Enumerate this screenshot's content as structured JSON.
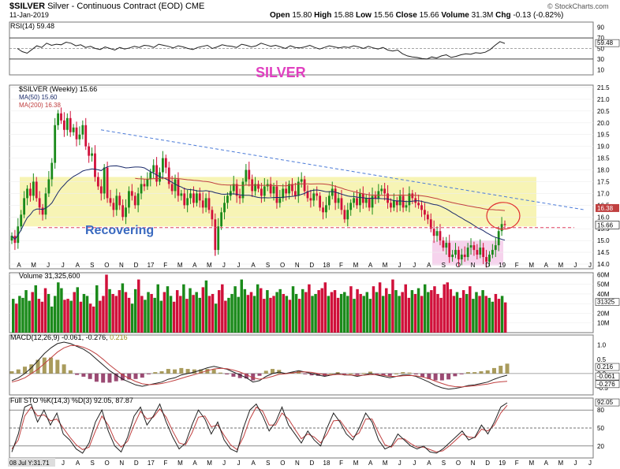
{
  "header": {
    "symbol": "$SILVER",
    "description": "Silver - Continuous Contract (EOD)",
    "exchange": "CME",
    "date": "11-Jan-2019",
    "open_label": "Open",
    "open": "15.80",
    "high_label": "High",
    "high": "15.88",
    "low_label": "Low",
    "low": "15.56",
    "close_label": "Close",
    "close": "15.66",
    "volume_label": "Volume",
    "volume": "31.3M",
    "chg_label": "Chg",
    "chg": "-0.13 (-0.82%)",
    "credit": "© StockCharts.com"
  },
  "colors": {
    "up": "#1a8a1a",
    "down": "#d0103a",
    "ma50": "#1a2a6a",
    "ma200": "#c04040",
    "trend": "#4a7ad8",
    "zone": "#f6f2a8",
    "pink_box": "#f4c8e8",
    "silver_text": "#e040c0",
    "recovering_text": "#3a6ac0"
  },
  "annotations": {
    "title": "SILVER",
    "recovering": "Recovering"
  },
  "chart_data": [
    {
      "type": "line",
      "name": "rsi_panel",
      "legend": "RSI(14) 59.48",
      "value_label": "59.48",
      "ylim": [
        0,
        100
      ],
      "yticks": [
        "90",
        "70",
        "50",
        "30",
        "10"
      ],
      "reference_lines": [
        70,
        30
      ],
      "values": [
        50,
        44,
        41,
        48,
        55,
        52,
        60,
        56,
        58,
        57,
        62,
        60,
        55,
        57,
        52,
        54,
        50,
        48,
        53,
        50,
        47,
        52,
        49,
        51,
        54,
        52,
        56,
        55,
        52,
        58,
        56,
        54,
        51,
        55,
        53,
        50,
        48,
        52,
        54,
        56,
        50,
        53,
        57,
        55,
        54,
        52,
        58,
        56,
        53,
        55,
        60,
        57,
        54,
        56,
        53,
        50,
        55,
        52,
        51,
        53,
        56,
        52,
        49,
        52,
        55,
        53,
        51,
        53,
        52,
        55,
        53,
        50,
        54,
        51,
        49,
        52,
        47,
        45,
        47,
        40,
        36,
        34,
        33,
        31,
        30,
        34,
        32,
        36,
        38,
        33,
        35,
        38,
        40,
        39,
        42,
        41,
        43,
        48,
        56,
        63,
        59.48
      ]
    },
    {
      "type": "candlestick",
      "name": "price_panel",
      "legend": "$SILVER (Weekly) 15.66",
      "series_labels": [
        "MA(50) 15.60",
        "MA(200) 16.38"
      ],
      "ylim": [
        13.8,
        21.6
      ],
      "yticks": [
        "21.5",
        "21.0",
        "20.5",
        "20.0",
        "19.5",
        "19.0",
        "18.5",
        "18.0",
        "17.5",
        "17.0",
        "16.5",
        "16.0",
        "15.5",
        "15.0",
        "14.5",
        "14.0"
      ],
      "price_tags": [
        "16.38",
        "15.66"
      ],
      "x_labels": [
        "A",
        "M",
        "J",
        "J",
        "A",
        "S",
        "O",
        "N",
        "D",
        "17",
        "F",
        "M",
        "A",
        "M",
        "J",
        "J",
        "A",
        "S",
        "O",
        "N",
        "D",
        "18",
        "F",
        "M",
        "A",
        "M",
        "J",
        "J",
        "A",
        "S",
        "O",
        "N",
        "D",
        "19",
        "F",
        "M",
        "A",
        "M",
        "J",
        "J"
      ],
      "closes": [
        15.2,
        14.9,
        15.6,
        16.1,
        16.8,
        17.2,
        16.9,
        17.5,
        16.8,
        16.4,
        16.1,
        17.0,
        17.6,
        18.3,
        19.9,
        20.4,
        20.1,
        19.7,
        20.2,
        19.6,
        19.8,
        19.3,
        19.5,
        19.9,
        19.0,
        18.6,
        18.7,
        17.7,
        17.3,
        17.0,
        18.1,
        16.8,
        16.6,
        16.3,
        16.9,
        16.5,
        16.0,
        16.4,
        17.1,
        16.9,
        16.5,
        17.0,
        17.4,
        17.3,
        17.6,
        17.9,
        18.2,
        17.5,
        17.9,
        18.5,
        18.1,
        17.4,
        17.1,
        17.6,
        16.9,
        17.0,
        16.5,
        16.8,
        17.0,
        16.6,
        17.0,
        16.7,
        16.4,
        16.8,
        16.3,
        15.9,
        14.6,
        15.6,
        16.2,
        16.6,
        16.9,
        17.1,
        17.4,
        16.9,
        16.8,
        17.5,
        18.0,
        17.6,
        17.1,
        17.4,
        17.2,
        16.9,
        17.3,
        17.4,
        17.0,
        17.3,
        16.6,
        16.8,
        17.2,
        17.0,
        17.4,
        17.1,
        16.9,
        17.5,
        17.6,
        17.1,
        16.8,
        16.7,
        17.0,
        16.9,
        16.4,
        16.2,
        16.5,
        16.9,
        17.2,
        16.6,
        16.8,
        16.3,
        15.9,
        16.3,
        16.6,
        16.8,
        16.5,
        17.0,
        16.6,
        16.8,
        16.4,
        16.9,
        16.8,
        17.1,
        17.2,
        17.0,
        16.6,
        16.4,
        16.7,
        16.5,
        16.9,
        16.4,
        16.5,
        17.0,
        16.8,
        16.6,
        16.5,
        16.3,
        16.1,
        15.9,
        15.5,
        15.2,
        15.4,
        15.0,
        14.7,
        14.9,
        14.3,
        14.4,
        14.6,
        14.2,
        14.4,
        14.3,
        14.7,
        14.8,
        14.6,
        14.4,
        14.7,
        14.3,
        14.1,
        14.4,
        14.6,
        14.8,
        15.4,
        15.7,
        15.66
      ],
      "trendline": {
        "start_date": "Jul 2016",
        "start_value": 19.7,
        "end_date": "Jul 2019",
        "end_value": 16.3
      },
      "support_line": 15.55,
      "zone": [
        15.6,
        17.7
      ]
    },
    {
      "type": "bar",
      "name": "volume_panel",
      "legend": "Volume 31,325,600",
      "value_label": "31325",
      "yticks": [
        "60M",
        "50M",
        "40M",
        "30M",
        "20M",
        "10M"
      ],
      "ylim": [
        0,
        62
      ],
      "values": [
        35,
        30,
        38,
        36,
        44,
        33,
        42,
        49,
        35,
        32,
        46,
        40,
        27,
        38,
        52,
        46,
        34,
        35,
        33,
        42,
        47,
        32,
        40,
        38,
        30,
        27,
        49,
        33,
        38,
        60,
        45,
        40,
        38,
        44,
        51,
        42,
        36,
        30,
        45,
        55,
        38,
        34,
        42,
        40,
        36,
        50,
        33,
        42,
        48,
        38,
        32,
        44,
        38,
        50,
        35,
        46,
        39,
        42,
        36,
        47,
        54,
        38,
        40,
        30,
        44,
        50,
        33,
        36,
        40,
        48,
        37,
        55,
        45,
        39,
        42,
        38,
        50,
        46,
        35,
        44,
        36,
        38,
        42,
        45,
        40,
        38,
        34,
        48,
        40,
        35,
        45,
        42,
        50,
        38,
        40,
        44,
        46,
        52,
        38,
        42,
        44,
        36,
        40,
        42,
        38,
        48,
        35,
        45,
        40,
        38,
        42,
        35,
        48,
        42,
        52,
        38,
        46,
        40,
        55,
        44,
        38,
        42,
        50,
        36,
        44,
        40,
        46,
        38,
        50,
        42,
        44,
        48,
        40,
        36,
        50,
        52,
        45,
        38,
        42,
        36,
        44,
        40,
        48,
        35,
        42,
        38,
        44,
        38,
        36,
        32,
        40,
        35,
        38,
        31.3
      ]
    },
    {
      "type": "line",
      "name": "macd_panel",
      "legend_prefix": "MACD(12,26,9)",
      "legend_values": "-0.061, -0.276,",
      "legend_hist": "0.216",
      "yticks": [
        "1.0",
        "0.5",
        "0.0",
        "-0.5"
      ],
      "value_labels": [
        "0.216",
        "-0.061",
        "-0.276"
      ],
      "ylim": [
        -0.75,
        1.35
      ],
      "macd": [
        -0.25,
        -0.15,
        0.0,
        0.2,
        0.45,
        0.7,
        0.9,
        1.05,
        1.1,
        1.05,
        0.95,
        0.85,
        0.7,
        0.5,
        0.3,
        0.1,
        -0.05,
        -0.2,
        -0.3,
        -0.4,
        -0.45,
        -0.4,
        -0.35,
        -0.3,
        -0.2,
        -0.15,
        -0.05,
        0.0,
        0.05,
        0.12,
        0.2,
        0.25,
        0.2,
        0.15,
        0.05,
        -0.05,
        -0.15,
        -0.3,
        -0.25,
        -0.1,
        0.0,
        0.05,
        0.0,
        0.05,
        0.1,
        0.05,
        0.0,
        -0.05,
        -0.1,
        -0.05,
        0.0,
        -0.05,
        -0.05,
        -0.1,
        -0.05,
        0.0,
        -0.05,
        -0.1,
        -0.15,
        -0.1,
        -0.05,
        -0.05,
        -0.1,
        -0.2,
        -0.3,
        -0.42,
        -0.5,
        -0.55,
        -0.52,
        -0.48,
        -0.42,
        -0.4,
        -0.35,
        -0.3,
        -0.2,
        -0.12,
        -0.06
      ],
      "signal": [
        -0.3,
        -0.24,
        -0.15,
        0.0,
        0.15,
        0.35,
        0.55,
        0.75,
        0.9,
        0.98,
        0.98,
        0.92,
        0.82,
        0.68,
        0.5,
        0.3,
        0.12,
        -0.05,
        -0.17,
        -0.28,
        -0.36,
        -0.39,
        -0.38,
        -0.35,
        -0.3,
        -0.24,
        -0.17,
        -0.1,
        -0.04,
        0.03,
        0.1,
        0.16,
        0.18,
        0.17,
        0.12,
        0.05,
        -0.04,
        -0.15,
        -0.2,
        -0.16,
        -0.1,
        -0.03,
        -0.01,
        0.02,
        0.05,
        0.06,
        0.04,
        0.0,
        -0.04,
        -0.05,
        -0.03,
        -0.04,
        -0.05,
        -0.07,
        -0.06,
        -0.04,
        -0.04,
        -0.06,
        -0.1,
        -0.1,
        -0.08,
        -0.07,
        -0.08,
        -0.12,
        -0.18,
        -0.27,
        -0.35,
        -0.42,
        -0.46,
        -0.47,
        -0.45,
        -0.43,
        -0.4,
        -0.37,
        -0.32,
        -0.29,
        -0.276
      ]
    },
    {
      "type": "line",
      "name": "sto_panel",
      "legend": "Full STO %K(14,3) %D(3) 92.05, 87.87",
      "value_label": "92.05",
      "yticks": [
        "80",
        "50",
        "20"
      ],
      "ylim": [
        0,
        100
      ],
      "k": [
        10,
        40,
        85,
        90,
        60,
        80,
        55,
        75,
        40,
        30,
        15,
        8,
        25,
        60,
        80,
        45,
        20,
        10,
        35,
        70,
        85,
        55,
        70,
        90,
        60,
        35,
        15,
        25,
        55,
        80,
        65,
        40,
        60,
        30,
        15,
        10,
        50,
        80,
        90,
        70,
        45,
        60,
        85,
        55,
        40,
        25,
        45,
        30,
        20,
        50,
        75,
        60,
        40,
        30,
        50,
        75,
        60,
        30,
        15,
        20,
        40,
        30,
        20,
        15,
        20,
        10,
        8,
        15,
        25,
        35,
        45,
        30,
        35,
        55,
        40,
        60,
        85,
        92.05
      ],
      "d": [
        15,
        30,
        70,
        85,
        70,
        72,
        62,
        65,
        50,
        35,
        22,
        14,
        18,
        45,
        70,
        55,
        30,
        18,
        28,
        55,
        78,
        65,
        68,
        82,
        68,
        45,
        25,
        22,
        42,
        68,
        70,
        52,
        55,
        38,
        22,
        14,
        35,
        65,
        85,
        78,
        55,
        55,
        75,
        65,
        48,
        32,
        40,
        35,
        25,
        40,
        62,
        63,
        48,
        35,
        42,
        65,
        65,
        42,
        22,
        18,
        32,
        32,
        24,
        18,
        18,
        14,
        10,
        12,
        20,
        30,
        40,
        35,
        34,
        48,
        45,
        55,
        75,
        87.87
      ],
      "x_labels": [
        "J",
        "A",
        "S",
        "O",
        "N",
        "D",
        "17",
        "F",
        "M",
        "A",
        "M",
        "J",
        "J",
        "A",
        "S",
        "O",
        "N",
        "D",
        "18",
        "F",
        "M",
        "A",
        "M",
        "J",
        "J",
        "A",
        "S",
        "O",
        "N",
        "D",
        "19",
        "F",
        "M",
        "A",
        "M",
        "J",
        "J"
      ],
      "corner_label": "08 Jul Y:31.71"
    }
  ]
}
